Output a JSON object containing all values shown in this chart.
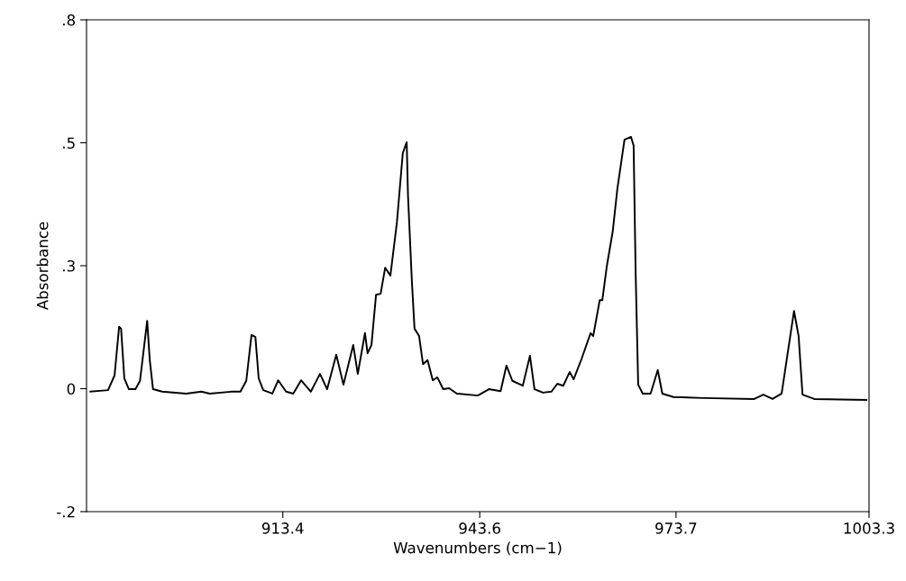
{
  "chart_data": {
    "type": "line",
    "xlabel": "Wavenumbers (cm−1)",
    "ylabel": "Absorbance",
    "xlim": [
      883.3,
      1003.3
    ],
    "xticks": [
      913.4,
      943.6,
      973.7,
      1003.3
    ],
    "ylim": [
      -0.2,
      0.8
    ],
    "yticks": [
      {
        "value": -0.2,
        "label": "-.2"
      },
      {
        "value": 0.05,
        "label": "0"
      },
      {
        "value": 0.3,
        "label": ".3"
      },
      {
        "value": 0.55,
        "label": ".5"
      },
      {
        "value": 0.8,
        "label": ".8"
      }
    ],
    "grid": false,
    "marker": "none",
    "line_style": "solid",
    "series": [
      {
        "color": "#000000",
        "x": [
          883.9,
          886.6,
          887.6,
          888.3,
          888.6,
          889.1,
          889.8,
          890.8,
          891.5,
          892.0,
          892.6,
          893.0,
          893.5,
          894.9,
          898.6,
          900.9,
          902.2,
          905.6,
          906.9,
          907.8,
          908.6,
          909.2,
          909.7,
          910.4,
          911.8,
          912.7,
          913.9,
          915.0,
          916.2,
          917.7,
          919.1,
          920.2,
          921.6,
          922.7,
          924.2,
          924.9,
          926.0,
          926.4,
          927.0,
          927.7,
          928.4,
          929.1,
          929.9,
          930.9,
          931.8,
          932.4,
          932.6,
          933.2,
          933.6,
          934.3,
          934.9,
          935.6,
          936.4,
          937.1,
          938.0,
          938.9,
          940.1,
          943.3,
          945.0,
          946.8,
          947.7,
          948.6,
          950.2,
          951.3,
          952.0,
          953.3,
          954.6,
          955.5,
          956.4,
          957.4,
          958.0,
          959.2,
          960.6,
          961.0,
          962.0,
          962.4,
          963.1,
          964.0,
          964.7,
          965.8,
          966.8,
          967.2,
          967.5,
          967.9,
          968.6,
          969.8,
          970.9,
          971.6,
          973.3,
          977.9,
          985.7,
          987.1,
          988.5,
          989.9,
          990.7,
          991.8,
          992.5,
          993.1,
          994.9,
          1002.9
        ],
        "values": [
          0.044,
          0.047,
          0.077,
          0.176,
          0.172,
          0.071,
          0.049,
          0.049,
          0.066,
          0.121,
          0.188,
          0.108,
          0.049,
          0.044,
          0.04,
          0.044,
          0.04,
          0.044,
          0.044,
          0.066,
          0.159,
          0.155,
          0.071,
          0.047,
          0.04,
          0.067,
          0.044,
          0.04,
          0.067,
          0.044,
          0.08,
          0.049,
          0.119,
          0.058,
          0.139,
          0.08,
          0.163,
          0.122,
          0.139,
          0.241,
          0.243,
          0.296,
          0.28,
          0.388,
          0.529,
          0.551,
          0.443,
          0.267,
          0.172,
          0.157,
          0.1,
          0.108,
          0.067,
          0.073,
          0.049,
          0.051,
          0.04,
          0.036,
          0.049,
          0.045,
          0.097,
          0.066,
          0.056,
          0.117,
          0.049,
          0.042,
          0.044,
          0.06,
          0.056,
          0.084,
          0.069,
          0.11,
          0.163,
          0.157,
          0.23,
          0.23,
          0.3,
          0.37,
          0.456,
          0.556,
          0.562,
          0.544,
          0.291,
          0.058,
          0.04,
          0.04,
          0.088,
          0.04,
          0.033,
          0.031,
          0.029,
          0.038,
          0.029,
          0.04,
          0.111,
          0.208,
          0.157,
          0.038,
          0.029,
          0.027
        ]
      }
    ]
  }
}
